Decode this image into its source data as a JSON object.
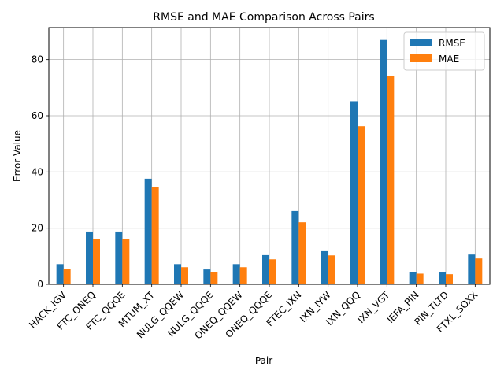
{
  "chart_data": {
    "type": "bar",
    "title": "RMSE and MAE Comparison Across Pairs",
    "xlabel": "Pair",
    "ylabel": "Error Value",
    "categories": [
      "HACK_IGV",
      "FTC_ONEQ",
      "FTC_QQQE",
      "MTUM_XT",
      "NULG_QQEW",
      "NULG_QQQE",
      "ONEQ_QQEW",
      "ONEQ_QQQE",
      "FTEC_IXN",
      "IXN_IYW",
      "IXN_QQQ",
      "IXN_VGT",
      "IEFA_PIN",
      "PIN_TLTD",
      "FTXL_SOXX"
    ],
    "series": [
      {
        "name": "RMSE",
        "color": "#1f77b4",
        "values": [
          7.2,
          18.8,
          18.8,
          37.6,
          7.2,
          5.3,
          7.2,
          10.4,
          26.1,
          11.8,
          65.2,
          87.0,
          4.4,
          4.2,
          10.6
        ]
      },
      {
        "name": "MAE",
        "color": "#ff7f0e",
        "values": [
          5.5,
          16.0,
          16.0,
          34.6,
          6.1,
          4.3,
          6.1,
          8.9,
          22.1,
          10.3,
          56.3,
          74.1,
          3.8,
          3.6,
          9.2
        ]
      }
    ],
    "ylim": [
      0,
      91.4
    ],
    "yticks": [
      0,
      20,
      40,
      60,
      80
    ],
    "grid": true,
    "legend_position": "top-right"
  }
}
